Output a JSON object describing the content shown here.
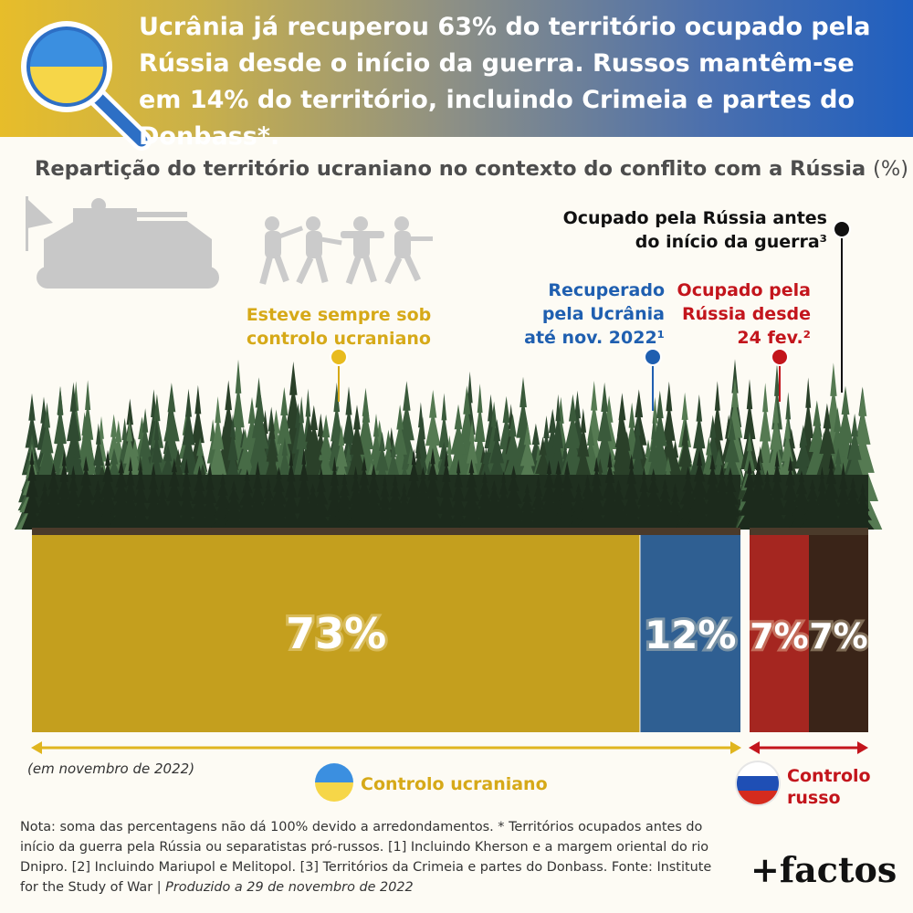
{
  "header": {
    "headline": "Ucrânia já recuperou 63% do território ocupado pela Rússia desde o início da guerra. Russos mantêm-se em 14% do território, incluindo Crimeia e partes do Donbass*."
  },
  "chart_title": "Repartição do território ucraniano no contexto do conflito com a Rússia",
  "chart_title_unit": "(%)",
  "callouts": {
    "always_ukraine": [
      "Esteve sempre sob",
      "controlo ucraniano"
    ],
    "recovered": [
      "Recuperado",
      "pela Ucrânia",
      "até nov. 2022¹"
    ],
    "occupied_since_feb": [
      "Ocupado pela",
      "Rússia desde",
      "24 fev.²"
    ],
    "occupied_before": [
      "Ocupado pela Rússia antes",
      "do início da guerra³"
    ]
  },
  "chart_data": {
    "type": "bar",
    "orientation": "horizontal-stacked",
    "title": "Repartição do território ucraniano no contexto do conflito com a Rússia",
    "unit": "%",
    "categories": [
      "Esteve sempre sob controlo ucraniano",
      "Recuperado pela Ucrânia até nov. 2022",
      "Ocupado pela Rússia desde 24 fev.",
      "Ocupado pela Rússia antes do início da guerra"
    ],
    "values": [
      73,
      12,
      7,
      7
    ],
    "labels": [
      "73%",
      "12%",
      "7%",
      "7%"
    ],
    "colors": [
      "#c49f1e",
      "#2f5f92",
      "#a52620",
      "#3a2418"
    ],
    "groups": [
      {
        "name": "Controlo ucraniano",
        "members": [
          0,
          1
        ]
      },
      {
        "name": "Controlo russo",
        "members": [
          2,
          3
        ]
      }
    ]
  },
  "legend": {
    "ukraine": "Controlo ucraniano",
    "russia": [
      "Controlo",
      "russo"
    ]
  },
  "date_note": "(em novembro de 2022)",
  "note": {
    "text": "Nota: soma das percentagens não dá 100% devido a arredondamentos. * Territórios ocupados antes do início da guerra pela Rússia ou separatistas pró-russos. [1] Incluindo Kherson e a margem oriental do rio Dnipro. [2] Incluindo Mariupol e Melitopol. [3] Territórios da Crimeia e partes do Donbass. Fonte: Institute for the Study of War |",
    "produced": "Produzido a 29 de novembro de 2022"
  },
  "logo": "+factos",
  "colors": {
    "ukraine_yellow": "#e9b91d",
    "ukraine_blue": "#2f6fc0",
    "callout_yellow": "#d6a918",
    "callout_blue": "#1f5fb0",
    "callout_red": "#c3151c",
    "callout_black": "#111111",
    "forest": "#3b5a3c"
  }
}
